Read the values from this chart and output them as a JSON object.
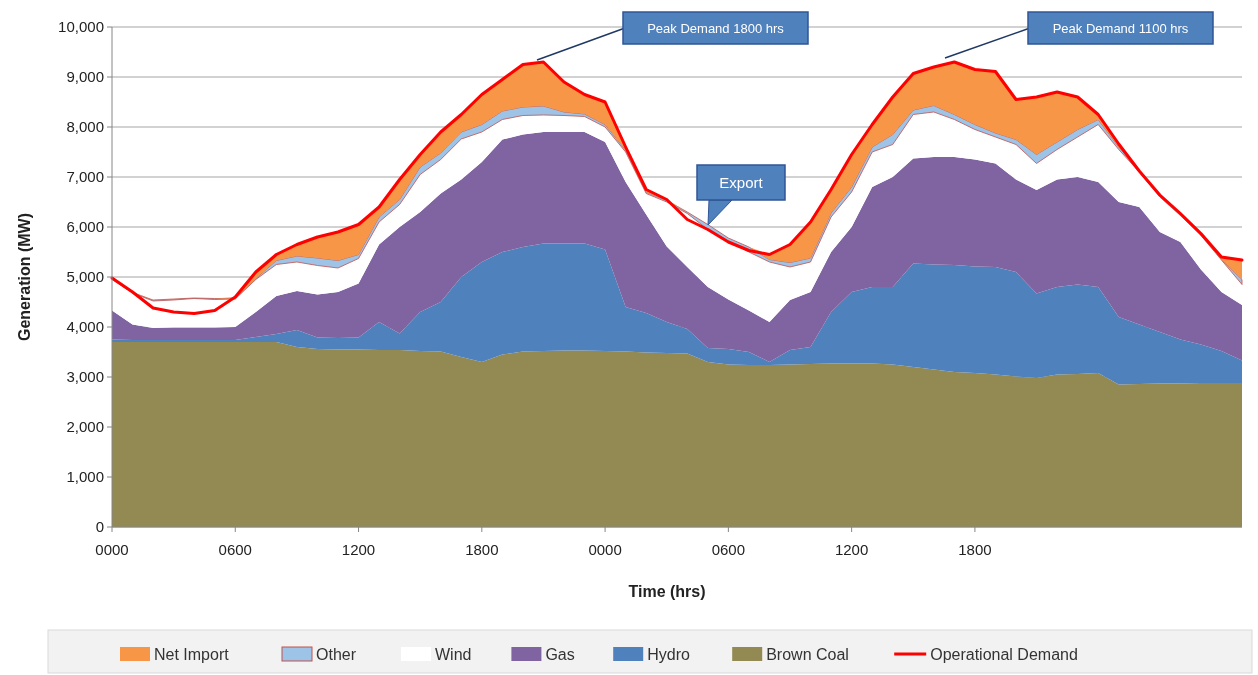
{
  "chart_data": {
    "type": "area",
    "stacked": true,
    "xlabel": "Time (hrs)",
    "ylabel": "Generation (MW)",
    "categories": [
      "0000",
      null,
      null,
      null,
      null,
      null,
      "0600",
      null,
      null,
      null,
      null,
      null,
      "1200",
      null,
      null,
      null,
      null,
      null,
      "1800",
      null,
      null,
      null,
      null,
      null,
      "0000",
      null,
      null,
      null,
      null,
      null,
      "0600",
      null,
      null,
      null,
      null,
      null,
      "1200",
      null,
      null,
      null,
      null,
      null,
      "1800",
      null,
      null,
      null,
      null,
      null,
      null,
      null,
      null,
      null,
      null,
      null,
      null,
      null
    ],
    "ylim": [
      0,
      10000
    ],
    "yticks": [
      0,
      {
        "value": 1000,
        "label": "1,000"
      },
      {
        "value": 2000,
        "label": "2,000"
      },
      {
        "value": 3000,
        "label": "3,000"
      },
      {
        "value": 4000,
        "label": "4,000"
      },
      {
        "value": 5000,
        "label": "5,000"
      },
      {
        "value": 6000,
        "label": "6,000"
      },
      {
        "value": 7000,
        "label": "7,000"
      },
      {
        "value": 8000,
        "label": "8,000"
      },
      {
        "value": 9000,
        "label": "9,000"
      },
      {
        "value": 10000,
        "label": "10,000"
      }
    ],
    "grid": "y",
    "legend": "bottom",
    "annotations": [
      "Peak Demand 1800 hrs",
      "Peak Demand 1100 hrs",
      "Export"
    ],
    "series": [
      {
        "name": "Brown Coal",
        "color": "#938953",
        "values": [
          3700,
          3700,
          3700,
          3700,
          3700,
          3700,
          3700,
          3700,
          3700,
          3600,
          3560,
          3550,
          3550,
          3540,
          3540,
          3520,
          3510,
          3400,
          3300,
          3450,
          3510,
          3520,
          3530,
          3530,
          3520,
          3510,
          3490,
          3480,
          3470,
          3300,
          3250,
          3240,
          3240,
          3250,
          3260,
          3270,
          3270,
          3270,
          3250,
          3200,
          3150,
          3100,
          3080,
          3050,
          3010,
          2980,
          3050,
          3060,
          3080,
          2850,
          2860,
          2870,
          2870,
          2880,
          2880,
          2880
        ]
      },
      {
        "name": "Hydro",
        "color": "#4f81bd",
        "values": [
          50,
          40,
          40,
          40,
          40,
          40,
          40,
          100,
          160,
          340,
          230,
          230,
          240,
          560,
          330,
          780,
          990,
          1600,
          2000,
          2050,
          2090,
          2150,
          2140,
          2140,
          2030,
          890,
          790,
          620,
          490,
          280,
          310,
          260,
          60,
          290,
          340,
          1030,
          1430,
          1530,
          1550,
          2070,
          2100,
          2140,
          2130,
          2150,
          2090,
          1690,
          1750,
          1790,
          1720,
          1350,
          1190,
          1030,
          880,
          770,
          640,
          450
        ]
      },
      {
        "name": "Gas",
        "color": "#8064a2",
        "values": [
          580,
          310,
          240,
          250,
          250,
          250,
          260,
          500,
          760,
          780,
          860,
          920,
          1080,
          1550,
          2130,
          2000,
          2170,
          1950,
          2000,
          2250,
          2250,
          2230,
          2230,
          2230,
          2150,
          2500,
          1970,
          1510,
          1240,
          1220,
          990,
          830,
          800,
          1000,
          1100,
          1200,
          1300,
          2000,
          2200,
          2100,
          2150,
          2160,
          2140,
          2070,
          1850,
          2070,
          2150,
          2150,
          2100,
          2300,
          2350,
          2000,
          1950,
          1500,
          1180,
          1110
        ]
      },
      {
        "name": "Wind",
        "color": "#ffffff",
        "values": [
          620,
          630,
          540,
          550,
          580,
          560,
          560,
          650,
          630,
          580,
          580,
          480,
          500,
          450,
          450,
          750,
          680,
          810,
          600,
          400,
          380,
          340,
          330,
          310,
          300,
          600,
          420,
          890,
          1070,
          1150,
          1170,
          1170,
          1200,
          660,
          600,
          700,
          700,
          700,
          650,
          880,
          900,
          750,
          600,
          530,
          700,
          530,
          600,
          800,
          1150,
          1050,
          700,
          700,
          530,
          680,
          640,
          410
        ]
      },
      {
        "name": "Other",
        "color": "#9dc3e6",
        "values": [
          20,
          10,
          20,
          20,
          10,
          20,
          10,
          20,
          80,
          120,
          150,
          150,
          80,
          100,
          100,
          150,
          130,
          140,
          150,
          170,
          170,
          180,
          70,
          50,
          50,
          40,
          30,
          30,
          30,
          100,
          60,
          100,
          50,
          90,
          80,
          80,
          100,
          100,
          200,
          90,
          130,
          100,
          100,
          80,
          100,
          180,
          150,
          150,
          100,
          50,
          20,
          20,
          20,
          20,
          10,
          100
        ]
      },
      {
        "name": "Net Import",
        "color": "#f79646",
        "values": [
          10,
          10,
          0,
          0,
          0,
          0,
          30,
          130,
          120,
          230,
          420,
          570,
          600,
          200,
          400,
          250,
          420,
          350,
          600,
          630,
          850,
          880,
          600,
          390,
          450,
          60,
          50,
          20,
          0,
          0,
          0,
          0,
          100,
          360,
          720,
          470,
          650,
          450,
          750,
          730,
          770,
          1050,
          1100,
          1230,
          800,
          1150,
          1000,
          650,
          100,
          60,
          0,
          0,
          0,
          0,
          50,
          390
        ]
      },
      {
        "name": "Operational Demand",
        "type": "line",
        "color": "#ff0000",
        "values": [
          4980,
          4700,
          4380,
          4300,
          4270,
          4330,
          4600,
          5100,
          5450,
          5650,
          5800,
          5900,
          6050,
          6400,
          6950,
          7450,
          7900,
          8250,
          8650,
          8950,
          9250,
          9300,
          8900,
          8650,
          8500,
          7600,
          6750,
          6550,
          6150,
          5950,
          5700,
          5530,
          5450,
          5650,
          6100,
          6750,
          7450,
          8050,
          8600,
          9070,
          9200,
          9300,
          9150,
          9110,
          8550,
          8600,
          8700,
          8600,
          8250,
          7660,
          7120,
          6640,
          6270,
          5870,
          5400,
          5340
        ]
      }
    ]
  }
}
